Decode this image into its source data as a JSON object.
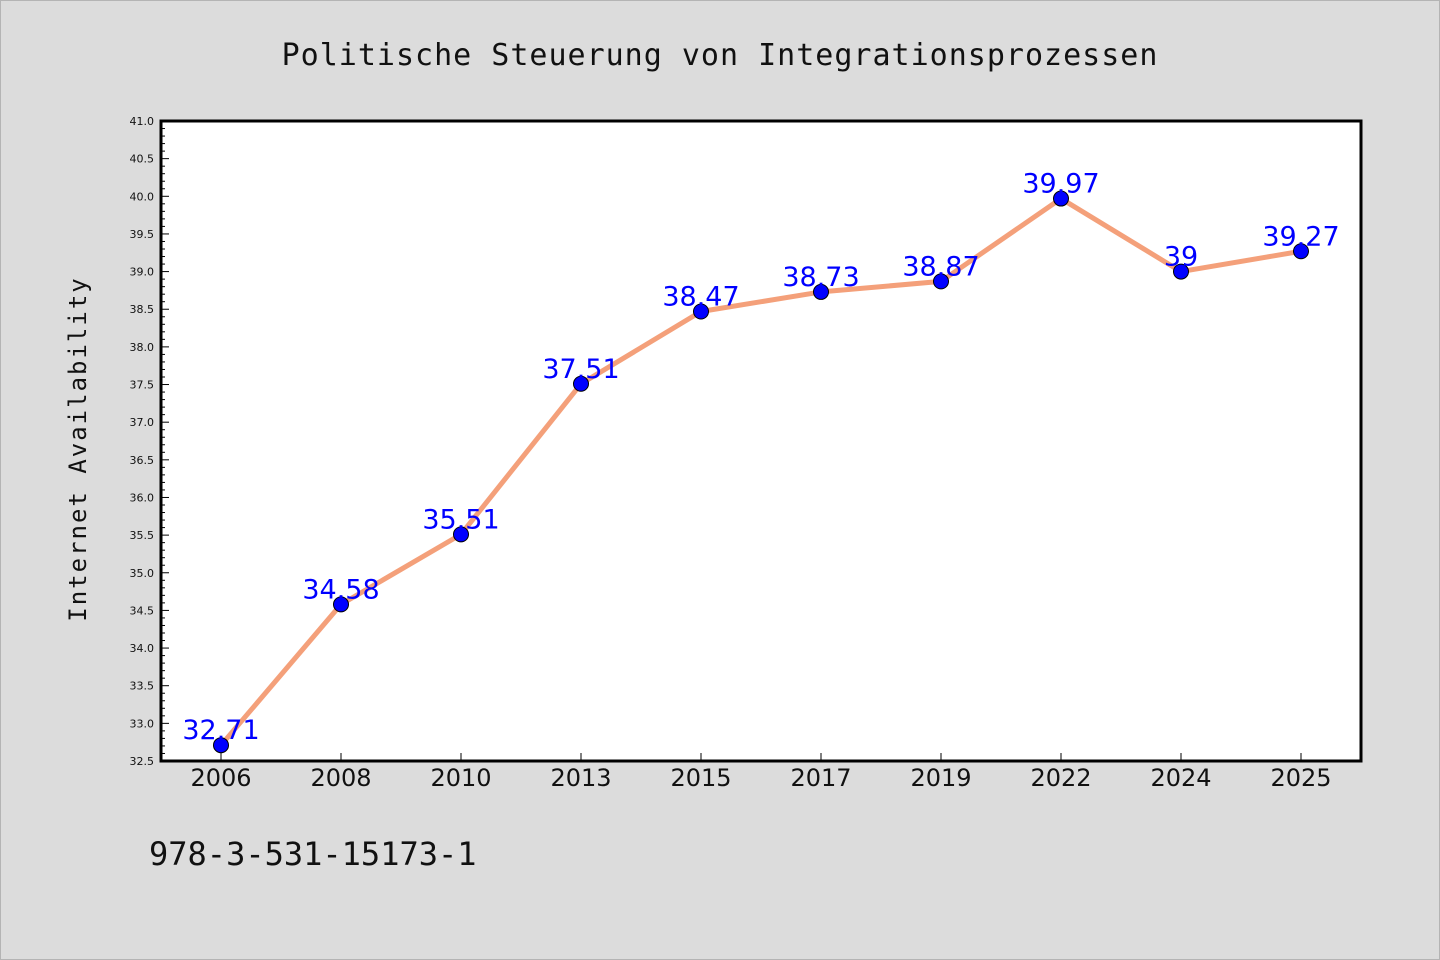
{
  "chart_data": {
    "type": "line",
    "title": "Politische Steuerung von Integrationsprozessen",
    "ylabel": "Internet Availability",
    "xlabel": "",
    "categories": [
      "2006",
      "2008",
      "2010",
      "2013",
      "2015",
      "2017",
      "2019",
      "2022",
      "2024",
      "2025"
    ],
    "series": [
      {
        "values": [
          32.71,
          34.58,
          35.51,
          37.51,
          38.47,
          38.73,
          38.87,
          39.97,
          39,
          39.27
        ],
        "data_labels": [
          "32.71",
          "34.58",
          "35.51",
          "37.51",
          "38.47",
          "38.73",
          "38.87",
          "39.97",
          "39",
          "39.27"
        ],
        "line_color": "#f4a07a",
        "marker_color": "#0000ff",
        "label_color": "#0000ff"
      }
    ],
    "ylim": [
      32.5,
      41.0
    ],
    "yticks": [
      "32.5",
      "33.0",
      "33.5",
      "34.0",
      "34.5",
      "35.0",
      "35.5",
      "36.0",
      "36.5",
      "37.0",
      "37.5",
      "38.0",
      "38.5",
      "39.0",
      "39.5",
      "40.0",
      "40.5",
      "41.0"
    ],
    "grid": false,
    "legend": "none"
  },
  "footer_text": "978-3-531-15173-1",
  "colors": {
    "background": "#dcdcdc",
    "plot_background": "#ffffff",
    "axes": "#000000"
  }
}
